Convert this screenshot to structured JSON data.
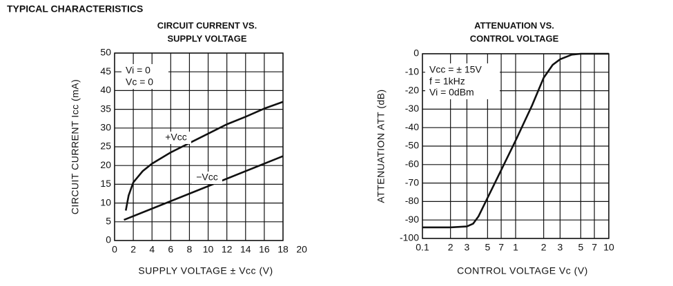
{
  "heading": "TYPICAL CHARACTERISTICS",
  "chart_data": [
    {
      "type": "line",
      "title": [
        "CIRCUIT CURRENT VS.",
        "SUPPLY VOLTAGE"
      ],
      "x_label": "SUPPLY VOLTAGE ± Vcc (V)",
      "y_label": "CIRCUIT CURRENT Icc (mA)",
      "xlim": [
        0,
        18
      ],
      "xticks": [
        0,
        2,
        4,
        6,
        8,
        10,
        12,
        14,
        16,
        18,
        20
      ],
      "ylim": [
        0,
        50
      ],
      "yticks": [
        0,
        5,
        10,
        15,
        20,
        25,
        30,
        35,
        40,
        45,
        50
      ],
      "grid": true,
      "log_x": false,
      "annotations": [
        "Vi = 0",
        "Vc = 0"
      ],
      "series": [
        {
          "name": "+Vcc",
          "color": "#111111",
          "x": [
            1.2,
            1.5,
            2,
            3,
            4,
            6,
            8,
            10,
            12,
            14,
            16,
            18
          ],
          "values": [
            8,
            12,
            15.5,
            18.5,
            20.5,
            23.5,
            26,
            28.5,
            31,
            33,
            35.2,
            37
          ]
        },
        {
          "name": "−Vcc",
          "color": "#111111",
          "x": [
            1,
            4,
            8,
            12,
            16,
            18
          ],
          "values": [
            5.5,
            8.5,
            12.5,
            16.5,
            20.5,
            22.5
          ]
        }
      ]
    },
    {
      "type": "line",
      "title": [
        "ATTENUATION VS.",
        "CONTROL VOLTAGE"
      ],
      "x_label": "CONTROL VOLTAGE Vc (V)",
      "y_label": "ATTENUATION ATT (dB)",
      "xlim": [
        0.1,
        10
      ],
      "xticks": [
        0.1,
        {
          "value": 0.2,
          "label": "2"
        },
        {
          "value": 0.3,
          "label": "3"
        },
        {
          "value": 0.5,
          "label": "5"
        },
        {
          "value": 0.7,
          "label": "7"
        },
        1,
        2,
        3,
        5,
        7,
        10
      ],
      "ylim": [
        -100,
        0
      ],
      "yticks": [
        -100,
        -90,
        -80,
        -70,
        -60,
        -50,
        -40,
        -30,
        -20,
        -10,
        0
      ],
      "grid": true,
      "log_x": true,
      "annotations": [
        "Vcc = ± 15V",
        "f = 1kHz",
        "Vi = 0dBm"
      ],
      "series": [
        {
          "name": "ATT",
          "color": "#111111",
          "x": [
            0.1,
            0.2,
            0.3,
            0.35,
            0.4,
            0.5,
            0.7,
            1,
            1.5,
            2,
            2.5,
            3,
            4,
            5,
            10
          ],
          "values": [
            -94,
            -94,
            -93.5,
            -92,
            -88,
            -78,
            -63,
            -47,
            -28,
            -13,
            -6,
            -3,
            -0.5,
            0,
            0
          ]
        }
      ]
    }
  ]
}
